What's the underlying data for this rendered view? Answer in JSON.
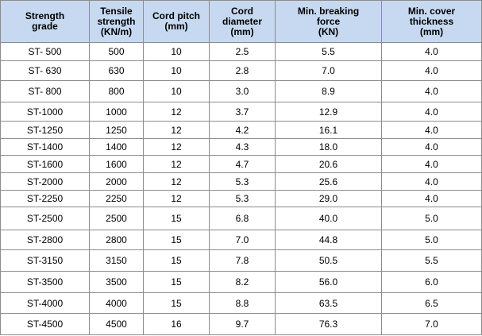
{
  "table": {
    "header": [
      "Strength\ngrade",
      "Tensile\nstrength\n(KN/m)",
      "Cord pitch\n(mm)",
      "Cord\ndiameter\n(mm)",
      "Min. breaking\nforce\n(KN)",
      "Min. cover\nthickness\n(mm)"
    ],
    "rows": [
      [
        "ST- 500",
        "500",
        "10",
        "2.5",
        "5.5",
        "4.0"
      ],
      [
        "ST- 630",
        "630",
        "10",
        "2.8",
        "7.0",
        "4.0"
      ],
      [
        "ST- 800",
        "800",
        "10",
        "3.0",
        "8.9",
        "4.0"
      ],
      [
        "ST-1000",
        "1000",
        "12",
        "3.7",
        "12.9",
        "4.0"
      ],
      [
        "ST-1250",
        "1250",
        "12",
        "4.2",
        "16.1",
        "4.0"
      ],
      [
        "ST-1400",
        "1400",
        "12",
        "4.3",
        "18.0",
        "4.0"
      ],
      [
        "ST-1600",
        "1600",
        "12",
        "4.7",
        "20.6",
        "4.0"
      ],
      [
        "ST-2000",
        "2000",
        "12",
        "5.3",
        "25.6",
        "4.0"
      ],
      [
        "ST-2250",
        "2250",
        "12",
        "5.3",
        "29.0",
        "4.0"
      ],
      [
        "ST-2500",
        "2500",
        "15",
        "6.8",
        "40.0",
        "5.0"
      ],
      [
        "ST-2800",
        "2800",
        "15",
        "7.0",
        "44.8",
        "5.0"
      ],
      [
        "ST-3150",
        "3150",
        "15",
        "7.8",
        "50.5",
        "5.5"
      ],
      [
        "ST-3500",
        "3500",
        "15",
        "8.2",
        "56.0",
        "6.0"
      ],
      [
        "ST-4000",
        "4000",
        "15",
        "8.8",
        "63.5",
        "6.5"
      ],
      [
        "ST-4500",
        "4500",
        "16",
        "9.7",
        "76.3",
        "7.0"
      ]
    ]
  }
}
